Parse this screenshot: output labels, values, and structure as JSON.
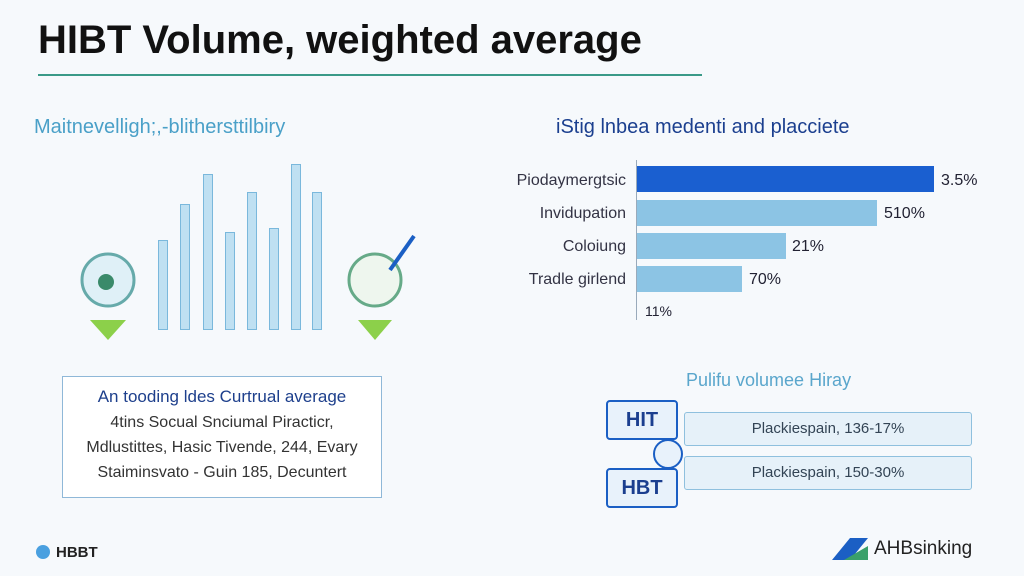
{
  "header": {
    "title": "HIBT Volume, weighted average"
  },
  "left_panel": {
    "title": "Maitnevelligh;,-blithersttilbiry"
  },
  "right_chart": {
    "title": "iStig lnbea medenti and placciete",
    "rows": [
      {
        "label": "Piodaymergtsic",
        "value": "3.5%"
      },
      {
        "label": "Invidupation",
        "value": "510%"
      },
      {
        "label": "Coloiung",
        "value": "21%"
      },
      {
        "label": "Tradle girlend",
        "value": "70%"
      },
      {
        "value": "11%"
      }
    ]
  },
  "info_box": {
    "title": "An tooding ldes Curtrual average",
    "lines": [
      "4tins Socual Snciumal Piracticr,",
      "Mdlustittes, Hasic Tivende, 244, Evary",
      "Staiminsvato - Guin 185, Decuntert"
    ]
  },
  "volume_panel": {
    "title": "Pulifu volumee Hiray",
    "badges": [
      "HIT",
      "HBT"
    ],
    "rows": [
      "Plackiespain, 136-17%",
      "Plackiespain, 150-30%"
    ]
  },
  "footer": {
    "left": "HBBT",
    "right": "AHBsinking"
  }
}
